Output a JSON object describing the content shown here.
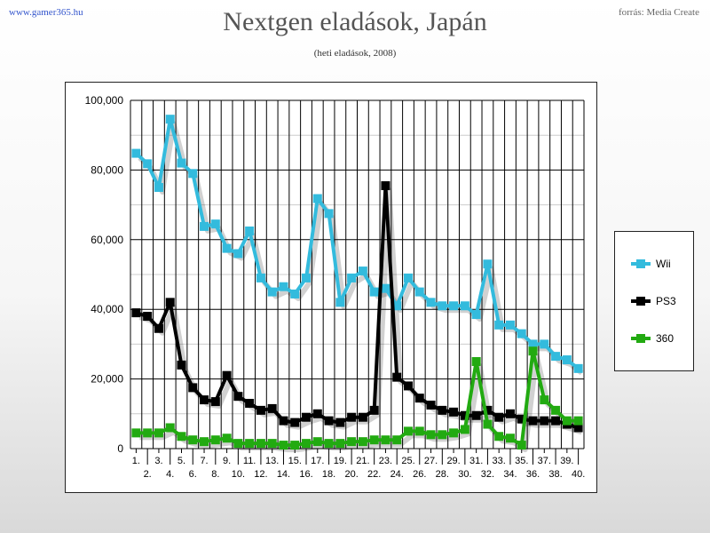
{
  "header": {
    "site": "www.gamer365.hu",
    "source": "forrás: Media Create",
    "title": "Nextgen eladások, Japán",
    "subtitle": "(heti eladások, 2008)"
  },
  "colors": {
    "wii": "#33bbdd",
    "ps3": "#000000",
    "x360": "#22aa11",
    "grid": "#000000"
  },
  "chart_data": {
    "type": "line",
    "title": "Nextgen eladások, Japán",
    "subtitle": "(heti eladások, 2008)",
    "ylim": [
      0,
      100000
    ],
    "yticks": [
      0,
      20000,
      40000,
      60000,
      80000,
      100000
    ],
    "ytick_labels": [
      "0",
      "20,000",
      "40,000",
      "60,000",
      "80,000",
      "100,000"
    ],
    "categories": [
      "1.",
      "2.",
      "3.",
      "4.",
      "5.",
      "6.",
      "7.",
      "8.",
      "9.",
      "10.",
      "11.",
      "12.",
      "13.",
      "14.",
      "15.",
      "16.",
      "17.",
      "18.",
      "19.",
      "20.",
      "21.",
      "22.",
      "23.",
      "24.",
      "25.",
      "26.",
      "27.",
      "28.",
      "29.",
      "30.",
      "31.",
      "32.",
      "33.",
      "34.",
      "35.",
      "36.",
      "37.",
      "38.",
      "39.",
      "40."
    ],
    "grid": true,
    "legend_position": "right",
    "series": [
      {
        "name": "Wii",
        "color": "#33bbdd",
        "values": [
          84800,
          81800,
          75000,
          94600,
          82000,
          79000,
          63800,
          64500,
          57500,
          56000,
          62500,
          49000,
          45000,
          46500,
          44400,
          49000,
          71800,
          67500,
          42000,
          49000,
          51000,
          45000,
          46000,
          41000,
          49000,
          45000,
          42000,
          41000,
          41000,
          41000,
          38500,
          53000,
          35500,
          35500,
          33000,
          30000,
          30000,
          26500,
          25500,
          23000
        ]
      },
      {
        "name": "PS3",
        "color": "#000000",
        "values": [
          39000,
          38000,
          34500,
          42000,
          24000,
          17500,
          14000,
          13500,
          21000,
          15000,
          13000,
          11000,
          11500,
          8000,
          7500,
          9000,
          10000,
          8000,
          7500,
          9000,
          9000,
          11000,
          75500,
          20500,
          18000,
          14500,
          12500,
          11000,
          10500,
          9500,
          9500,
          11000,
          9000,
          10000,
          8500,
          8000,
          8000,
          8000,
          7000,
          6000
        ]
      },
      {
        "name": "360",
        "color": "#22aa11",
        "values": [
          4500,
          4500,
          4500,
          6000,
          3500,
          2500,
          2000,
          2500,
          3000,
          1500,
          1500,
          1500,
          1500,
          1000,
          1000,
          1500,
          2000,
          1500,
          1500,
          2000,
          2000,
          2500,
          2500,
          2500,
          5000,
          5000,
          4000,
          4000,
          4500,
          5500,
          25000,
          7000,
          3500,
          3000,
          1000,
          28000,
          14000,
          11000,
          8000,
          8000
        ]
      }
    ]
  }
}
